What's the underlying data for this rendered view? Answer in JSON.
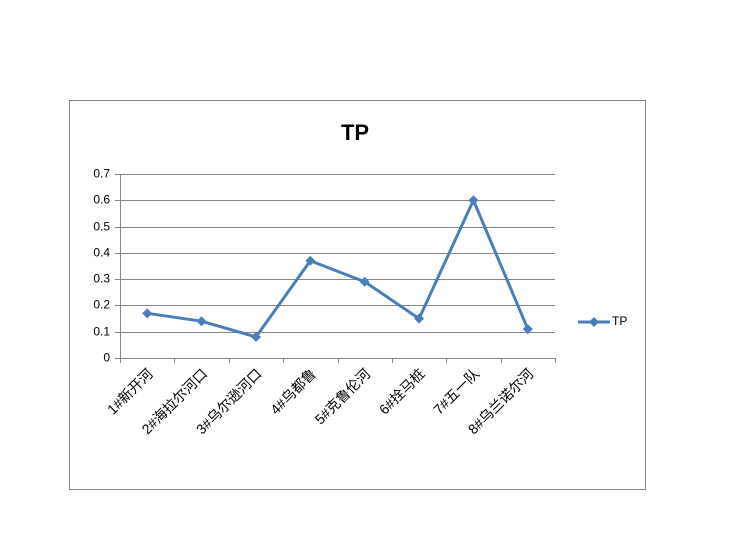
{
  "chart_data": {
    "type": "line",
    "title": "TP",
    "categories": [
      "1#新开河",
      "2#海拉尔河口",
      "3#乌尔逊河口",
      "4#乌都鲁",
      "5#克鲁伦河",
      "6#拴马桩",
      "7#五一队",
      "8#乌兰诺尔河"
    ],
    "series": [
      {
        "name": "TP",
        "color": "#4a7ebb",
        "values": [
          0.17,
          0.14,
          0.08,
          0.37,
          0.29,
          0.15,
          0.6,
          0.11
        ]
      }
    ],
    "ylim": [
      0,
      0.7
    ],
    "yticks": [
      0,
      0.1,
      0.2,
      0.3,
      0.4,
      0.5,
      0.6,
      0.7
    ],
    "grid": true,
    "legend": "right"
  }
}
